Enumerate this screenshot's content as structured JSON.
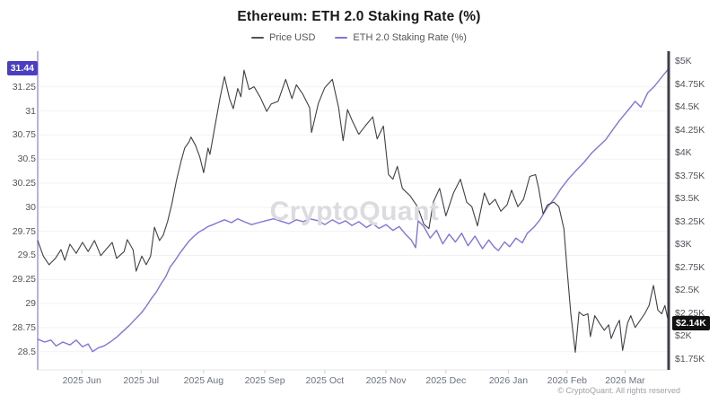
{
  "header": {
    "title": "Ethereum: ETH 2.0 Staking Rate (%)"
  },
  "legend": [
    {
      "label": "Price USD",
      "color": "#52525b"
    },
    {
      "label": "ETH 2.0 Staking Rate (%)",
      "color": "#7d76d9"
    }
  ],
  "watermark": "CryptoQuant",
  "footer": {
    "copyright": "© CryptoQuant. All rights reserved"
  },
  "badges": {
    "staking_rate": {
      "text": "31.44",
      "bg": "#4a3fc4"
    },
    "price": {
      "text": "$2.14K",
      "bg": "#111111"
    }
  },
  "colors": {
    "price_line": "#3f3f46",
    "staking_line": "#7d76d9",
    "left_axis": "#b8b0e8",
    "right_axis": "#3f3f46",
    "grid": "#f2f2f4",
    "bottom_axis": "#e4e4e7",
    "tick_mark": "#cfcfd6"
  },
  "chart_data": {
    "type": "line",
    "title": "Ethereum: ETH 2.0 Staking Rate (%)",
    "legend_position": "top",
    "grid": "horizontal-faint",
    "x_axis": {
      "ticks": [
        {
          "label": "2025 Jun",
          "t": 7.0
        },
        {
          "label": "2025 Jul",
          "t": 16.4
        },
        {
          "label": "2025 Aug",
          "t": 26.3
        },
        {
          "label": "2025 Sep",
          "t": 36.0
        },
        {
          "label": "2025 Oct",
          "t": 45.5
        },
        {
          "label": "2025 Nov",
          "t": 55.2
        },
        {
          "label": "2025 Dec",
          "t": 64.7
        },
        {
          "label": "2026 Jan",
          "t": 74.6
        },
        {
          "label": "2026 Feb",
          "t": 83.9
        },
        {
          "label": "2026 Mar",
          "t": 93.1
        }
      ]
    },
    "y_left": {
      "name": "ETH 2.0 Staking Rate (%)",
      "range": [
        28.5,
        31.5
      ],
      "ticks": [
        {
          "label": "31.25",
          "value": 31.25
        },
        {
          "label": "31",
          "value": 31
        },
        {
          "label": "30.75",
          "value": 30.75
        },
        {
          "label": "30.5",
          "value": 30.5
        },
        {
          "label": "30.25",
          "value": 30.25
        },
        {
          "label": "30",
          "value": 30
        },
        {
          "label": "29.75",
          "value": 29.75
        },
        {
          "label": "29.5",
          "value": 29.5
        },
        {
          "label": "29.25",
          "value": 29.25
        },
        {
          "label": "29",
          "value": 29
        },
        {
          "label": "28.75",
          "value": 28.75
        },
        {
          "label": "28.5",
          "value": 28.5
        }
      ],
      "last_value": 31.44
    },
    "y_right": {
      "name": "Price USD",
      "range": [
        1750,
        5000
      ],
      "ticks": [
        {
          "label": "$5K",
          "value": 5000
        },
        {
          "label": "$4.75K",
          "value": 4750
        },
        {
          "label": "$4.5K",
          "value": 4500
        },
        {
          "label": "$4.25K",
          "value": 4250
        },
        {
          "label": "$4K",
          "value": 4000
        },
        {
          "label": "$3.75K",
          "value": 3750
        },
        {
          "label": "$3.5K",
          "value": 3500
        },
        {
          "label": "$3.25K",
          "value": 3250
        },
        {
          "label": "$3K",
          "value": 3000
        },
        {
          "label": "$2.75K",
          "value": 2750
        },
        {
          "label": "$2.5K",
          "value": 2500
        },
        {
          "label": "$2.25K",
          "value": 2250
        },
        {
          "label": "$2K",
          "value": 2000
        },
        {
          "label": "$1.75K",
          "value": 1750
        }
      ],
      "last_value_label": "$2.14K",
      "last_value": 2140
    },
    "series": [
      {
        "name": "ETH 2.0 Staking Rate (%)",
        "axis": "left",
        "color": "#7d76d9",
        "points": [
          [
            0,
            28.63
          ],
          [
            1.1,
            28.6
          ],
          [
            2.1,
            28.62
          ],
          [
            2.9,
            28.56
          ],
          [
            4,
            28.6
          ],
          [
            5.1,
            28.57
          ],
          [
            6.1,
            28.62
          ],
          [
            7.1,
            28.55
          ],
          [
            8,
            28.58
          ],
          [
            8.7,
            28.5
          ],
          [
            9.6,
            28.54
          ],
          [
            10.5,
            28.56
          ],
          [
            11.5,
            28.6
          ],
          [
            12.5,
            28.65
          ],
          [
            13.5,
            28.71
          ],
          [
            14.5,
            28.77
          ],
          [
            15.5,
            28.84
          ],
          [
            16.4,
            28.9
          ],
          [
            17.2,
            28.97
          ],
          [
            18,
            29.05
          ],
          [
            18.8,
            29.12
          ],
          [
            19.5,
            29.2
          ],
          [
            20.3,
            29.28
          ],
          [
            21,
            29.38
          ],
          [
            21.8,
            29.45
          ],
          [
            22.5,
            29.52
          ],
          [
            23.3,
            29.59
          ],
          [
            24,
            29.65
          ],
          [
            24.8,
            29.7
          ],
          [
            25.5,
            29.74
          ],
          [
            26.3,
            29.77
          ],
          [
            27,
            29.8
          ],
          [
            27.8,
            29.82
          ],
          [
            28.5,
            29.84
          ],
          [
            29.6,
            29.87
          ],
          [
            30.7,
            29.84
          ],
          [
            31.7,
            29.88
          ],
          [
            32.7,
            29.85
          ],
          [
            33.9,
            29.82
          ],
          [
            35,
            29.84
          ],
          [
            36.1,
            29.86
          ],
          [
            37.4,
            29.88
          ],
          [
            38.8,
            29.85
          ],
          [
            39.8,
            29.83
          ],
          [
            41,
            29.87
          ],
          [
            42.1,
            29.85
          ],
          [
            43.1,
            29.88
          ],
          [
            44.5,
            29.86
          ],
          [
            45.5,
            29.82
          ],
          [
            46.7,
            29.87
          ],
          [
            47.8,
            29.83
          ],
          [
            48.8,
            29.86
          ],
          [
            49.8,
            29.81
          ],
          [
            50.9,
            29.85
          ],
          [
            52.1,
            29.79
          ],
          [
            53.1,
            29.83
          ],
          [
            54.1,
            29.78
          ],
          [
            55.2,
            29.82
          ],
          [
            56.3,
            29.76
          ],
          [
            57.3,
            29.8
          ],
          [
            58.3,
            29.72
          ],
          [
            59.2,
            29.66
          ],
          [
            59.9,
            29.58
          ],
          [
            60.3,
            29.86
          ],
          [
            61.2,
            29.8
          ],
          [
            62.2,
            29.68
          ],
          [
            63.2,
            29.76
          ],
          [
            64.2,
            29.62
          ],
          [
            65.2,
            29.72
          ],
          [
            66.2,
            29.64
          ],
          [
            67.2,
            29.73
          ],
          [
            68.2,
            29.6
          ],
          [
            69.3,
            29.7
          ],
          [
            70.5,
            29.57
          ],
          [
            71.5,
            29.66
          ],
          [
            72.3,
            29.59
          ],
          [
            73,
            29.55
          ],
          [
            74,
            29.64
          ],
          [
            74.8,
            29.59
          ],
          [
            75.8,
            29.68
          ],
          [
            76.8,
            29.63
          ],
          [
            77.6,
            29.73
          ],
          [
            78.6,
            29.79
          ],
          [
            79.6,
            29.87
          ],
          [
            80.8,
            30.0
          ],
          [
            82,
            30.1
          ],
          [
            83,
            30.2
          ],
          [
            84.2,
            30.3
          ],
          [
            85.3,
            30.38
          ],
          [
            86.5,
            30.46
          ],
          [
            87.9,
            30.57
          ],
          [
            90,
            30.7
          ],
          [
            91.2,
            30.81
          ],
          [
            92.2,
            30.9
          ],
          [
            93.6,
            31.01
          ],
          [
            94.7,
            31.1
          ],
          [
            95.6,
            31.04
          ],
          [
            96.7,
            31.19
          ],
          [
            97.8,
            31.26
          ],
          [
            99,
            31.36
          ],
          [
            100,
            31.44
          ]
        ]
      },
      {
        "name": "Price USD",
        "axis": "right",
        "color": "#3f3f46",
        "points": [
          [
            0,
            3040
          ],
          [
            0.9,
            2870
          ],
          [
            1.8,
            2775
          ],
          [
            2.8,
            2845
          ],
          [
            3.7,
            2940
          ],
          [
            4.3,
            2825
          ],
          [
            5.1,
            3000
          ],
          [
            6.1,
            2900
          ],
          [
            7.1,
            3020
          ],
          [
            8,
            2920
          ],
          [
            9,
            3040
          ],
          [
            10,
            2875
          ],
          [
            10.8,
            2940
          ],
          [
            11.8,
            3020
          ],
          [
            12.5,
            2845
          ],
          [
            13.7,
            2920
          ],
          [
            14.2,
            3050
          ],
          [
            15.1,
            2940
          ],
          [
            15.6,
            2705
          ],
          [
            16.5,
            2870
          ],
          [
            17.2,
            2775
          ],
          [
            17.9,
            2870
          ],
          [
            18.5,
            3185
          ],
          [
            19.3,
            3040
          ],
          [
            19.9,
            3100
          ],
          [
            20.6,
            3250
          ],
          [
            21.3,
            3450
          ],
          [
            22,
            3700
          ],
          [
            22.7,
            3900
          ],
          [
            23.3,
            4050
          ],
          [
            24,
            4120
          ],
          [
            24.3,
            4170
          ],
          [
            25,
            4080
          ],
          [
            25.7,
            3950
          ],
          [
            26.3,
            3780
          ],
          [
            27,
            4050
          ],
          [
            27.3,
            3980
          ],
          [
            28,
            4250
          ],
          [
            28.9,
            4600
          ],
          [
            29.6,
            4830
          ],
          [
            30.4,
            4590
          ],
          [
            31,
            4480
          ],
          [
            31.7,
            4700
          ],
          [
            32.2,
            4610
          ],
          [
            32.7,
            4900
          ],
          [
            33.5,
            4690
          ],
          [
            34.3,
            4720
          ],
          [
            35.3,
            4600
          ],
          [
            36.3,
            4450
          ],
          [
            37,
            4530
          ],
          [
            38.1,
            4560
          ],
          [
            39.3,
            4800
          ],
          [
            40.3,
            4590
          ],
          [
            41,
            4740
          ],
          [
            42,
            4640
          ],
          [
            43.1,
            4490
          ],
          [
            43.4,
            4220
          ],
          [
            44.5,
            4540
          ],
          [
            45.5,
            4710
          ],
          [
            46.7,
            4800
          ],
          [
            47.7,
            4490
          ],
          [
            48.4,
            4130
          ],
          [
            49.1,
            4470
          ],
          [
            49.9,
            4340
          ],
          [
            50.9,
            4200
          ],
          [
            51.9,
            4290
          ],
          [
            53.1,
            4390
          ],
          [
            53.8,
            4150
          ],
          [
            54.8,
            4290
          ],
          [
            55.6,
            3760
          ],
          [
            56.3,
            3710
          ],
          [
            57,
            3850
          ],
          [
            57.8,
            3610
          ],
          [
            59,
            3530
          ],
          [
            60.2,
            3410
          ],
          [
            61.2,
            3220
          ],
          [
            62,
            3170
          ],
          [
            62.7,
            3460
          ],
          [
            63.7,
            3610
          ],
          [
            64.7,
            3310
          ],
          [
            65.9,
            3560
          ],
          [
            67,
            3710
          ],
          [
            68,
            3460
          ],
          [
            68.8,
            3410
          ],
          [
            69.7,
            3200
          ],
          [
            70.8,
            3560
          ],
          [
            71.6,
            3430
          ],
          [
            72.5,
            3490
          ],
          [
            73.4,
            3360
          ],
          [
            74.4,
            3430
          ],
          [
            75.1,
            3590
          ],
          [
            76.1,
            3410
          ],
          [
            77,
            3490
          ],
          [
            78,
            3740
          ],
          [
            78.9,
            3760
          ],
          [
            79.4,
            3610
          ],
          [
            80.1,
            3330
          ],
          [
            80.8,
            3430
          ],
          [
            81.8,
            3460
          ],
          [
            82.6,
            3410
          ],
          [
            83.4,
            3170
          ],
          [
            83.9,
            2730
          ],
          [
            84.5,
            2240
          ],
          [
            85.2,
            1820
          ],
          [
            85.8,
            2260
          ],
          [
            86.5,
            2220
          ],
          [
            87.2,
            2240
          ],
          [
            87.6,
            1990
          ],
          [
            88.3,
            2220
          ],
          [
            89,
            2140
          ],
          [
            89.8,
            2060
          ],
          [
            90.5,
            2120
          ],
          [
            90.9,
            1970
          ],
          [
            91.6,
            2090
          ],
          [
            92.2,
            2170
          ],
          [
            92.7,
            1840
          ],
          [
            93.5,
            2140
          ],
          [
            94,
            2220
          ],
          [
            94.7,
            2090
          ],
          [
            95.4,
            2160
          ],
          [
            96.2,
            2240
          ],
          [
            96.9,
            2330
          ],
          [
            97.6,
            2550
          ],
          [
            98.3,
            2280
          ],
          [
            98.9,
            2240
          ],
          [
            99.4,
            2330
          ],
          [
            100,
            2140
          ]
        ]
      }
    ]
  }
}
